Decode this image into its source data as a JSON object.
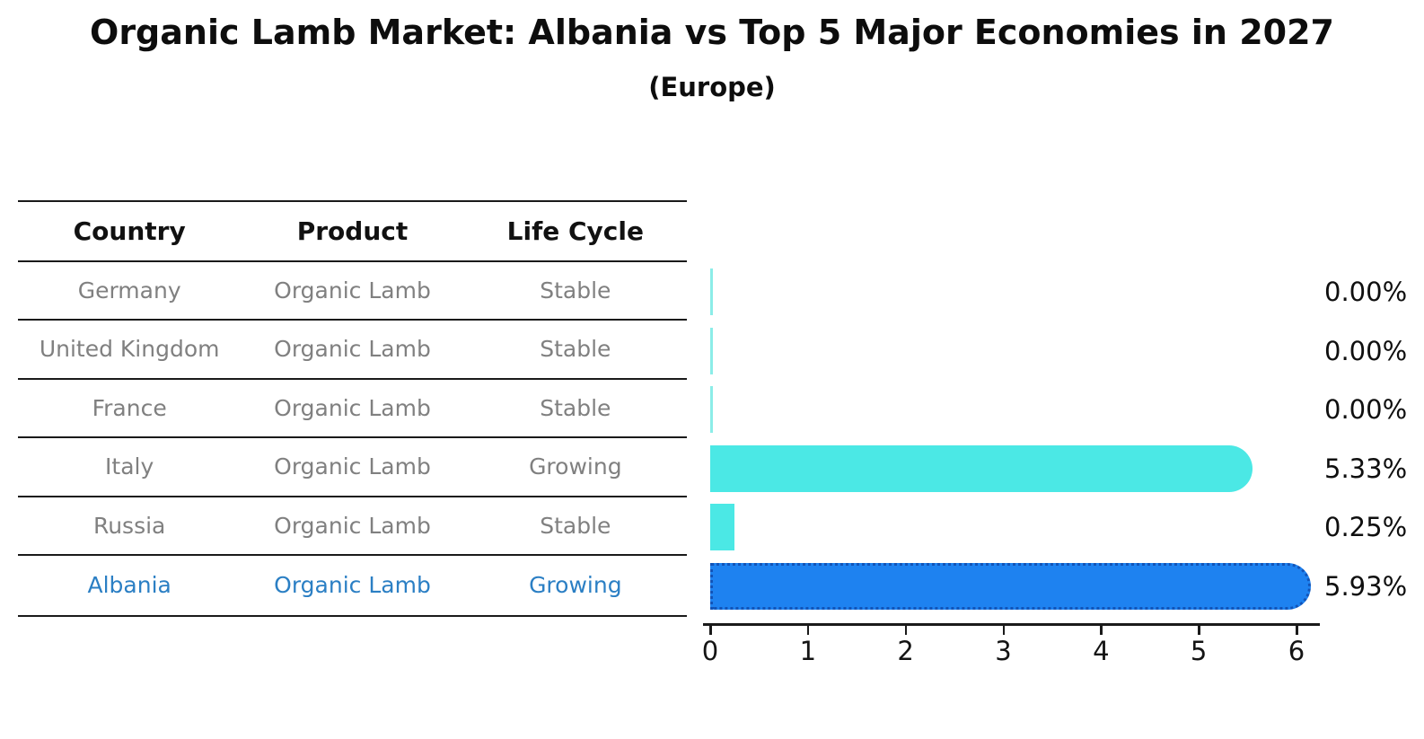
{
  "title": "Organic Lamb Market: Albania vs Top 5 Major Economies in 2027",
  "subtitle": "(Europe)",
  "table": {
    "headers": [
      "Country",
      "Product",
      "Life Cycle"
    ],
    "rows": [
      {
        "country": "Germany",
        "product": "Organic Lamb",
        "life_cycle": "Stable",
        "highlighted": false
      },
      {
        "country": "United Kingdom",
        "product": "Organic Lamb",
        "life_cycle": "Stable",
        "highlighted": false
      },
      {
        "country": "France",
        "product": "Organic Lamb",
        "life_cycle": "Stable",
        "highlighted": false
      },
      {
        "country": "Italy",
        "product": "Organic Lamb",
        "life_cycle": "Growing",
        "highlighted": false
      },
      {
        "country": "Russia",
        "product": "Organic Lamb",
        "life_cycle": "Stable",
        "highlighted": false
      },
      {
        "country": "Albania",
        "product": "Organic Lamb",
        "life_cycle": "Growing",
        "highlighted": true
      }
    ]
  },
  "chart_data": {
    "type": "bar",
    "orientation": "horizontal",
    "title": "Organic Lamb Market: Albania vs Top 5 Major Economies in 2027",
    "subtitle": "(Europe)",
    "categories": [
      "Germany",
      "United Kingdom",
      "France",
      "Italy",
      "Russia",
      "Albania"
    ],
    "values": [
      0.0,
      0.0,
      0.0,
      5.33,
      0.25,
      5.93
    ],
    "value_labels": [
      "0.00%",
      "0.00%",
      "0.00%",
      "5.33%",
      "0.25%",
      "5.93%"
    ],
    "x_ticks": [
      "0",
      "1",
      "2",
      "3",
      "4",
      "5",
      "6"
    ],
    "xlim": [
      0,
      6
    ],
    "highlight_index": 5,
    "grid": false,
    "legend": "none"
  },
  "colors": {
    "bar_default": "#4BE8E5",
    "bar_zero": "#8CEDE8",
    "bar_highlight_fill": "#1E82F0",
    "bar_highlight_edge": "#1254B8",
    "highlight_text": "#2B7FC4",
    "row_text": "#808080",
    "heading_text": "#111111",
    "axis": "#1A1A1A"
  }
}
